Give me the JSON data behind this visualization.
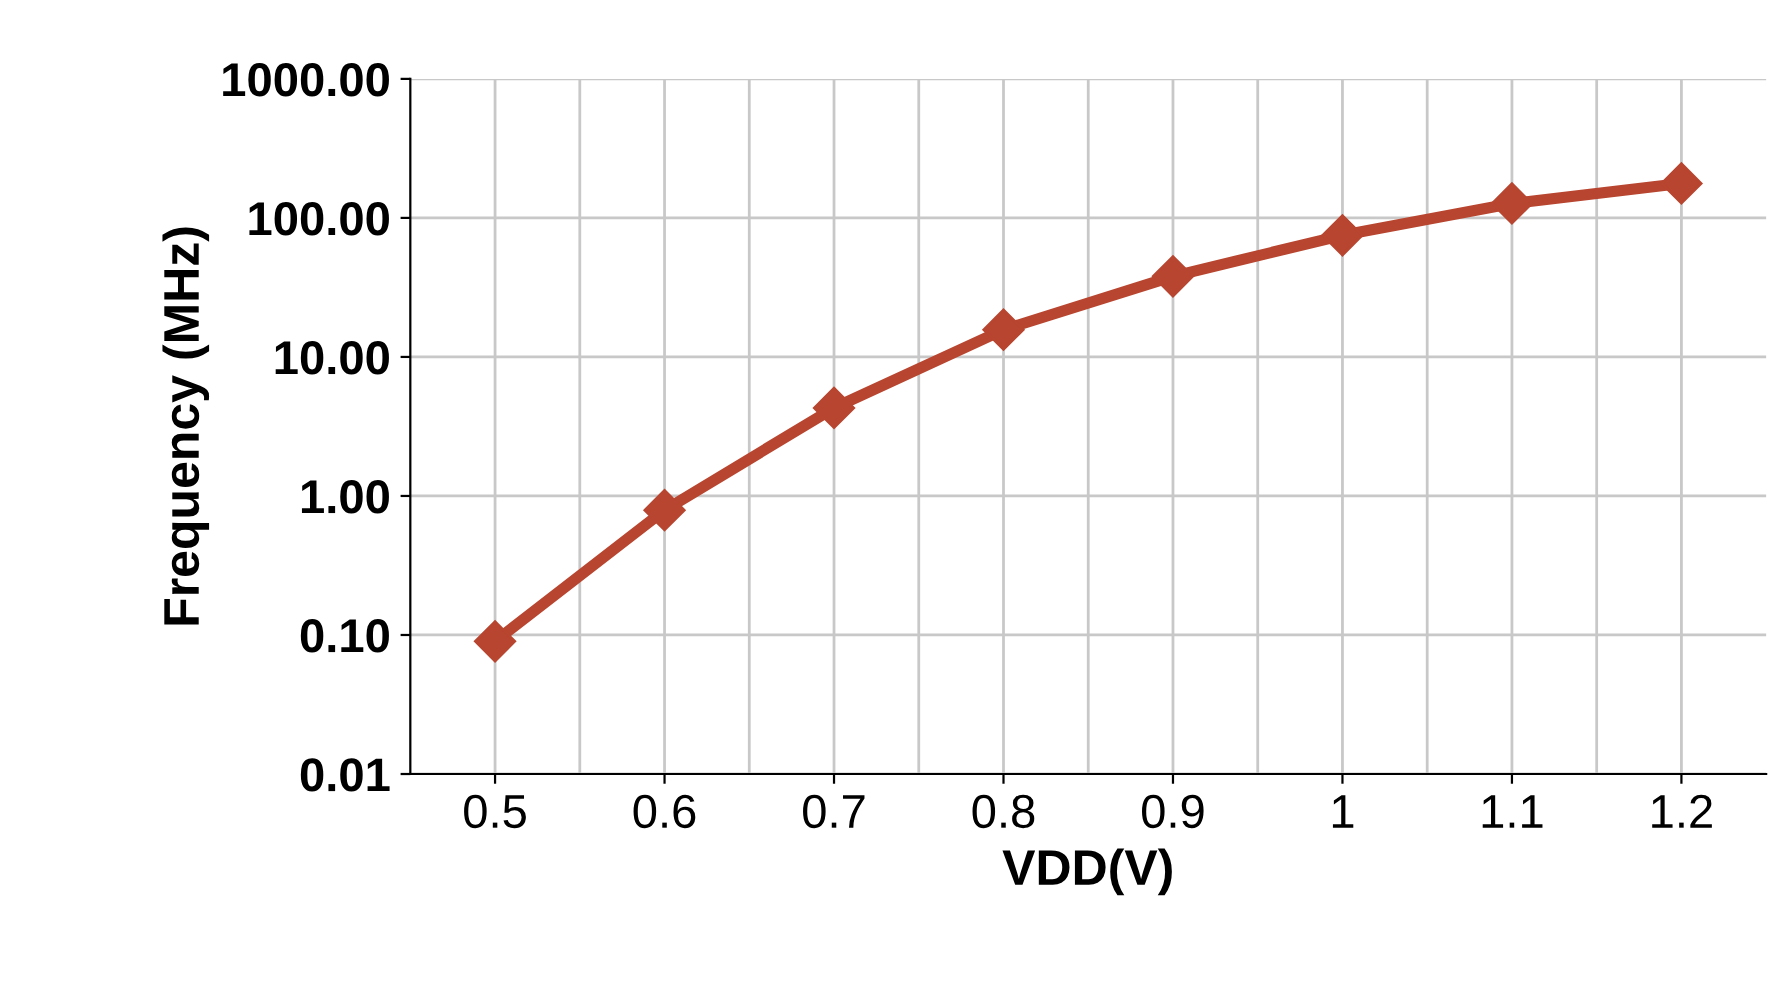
{
  "chart_data": {
    "type": "line",
    "xlabel": "VDD(V)",
    "ylabel": "Frequency (MHz)",
    "categories": [
      "0.5",
      "0.6",
      "0.7",
      "0.8",
      "0.9",
      "1",
      "1.1",
      "1.2"
    ],
    "series": [
      {
        "color": "#b8452f",
        "values": [
          0.09,
          0.79,
          4.3,
          15.7,
          38,
          75,
          127,
          177
        ]
      }
    ],
    "log": "y",
    "ylim": [
      0.01,
      1000
    ],
    "yticks": [
      {
        "value": 0.01,
        "label": "0.01"
      },
      {
        "value": 0.1,
        "label": "0.10"
      },
      {
        "value": 1,
        "label": "1.00"
      },
      {
        "value": 10,
        "label": "10.00"
      },
      {
        "value": 100,
        "label": "100.00"
      },
      {
        "value": 1000,
        "label": "1000.00"
      }
    ],
    "grid": true,
    "marker": "diamond",
    "line_style": "solid",
    "legend": false
  }
}
